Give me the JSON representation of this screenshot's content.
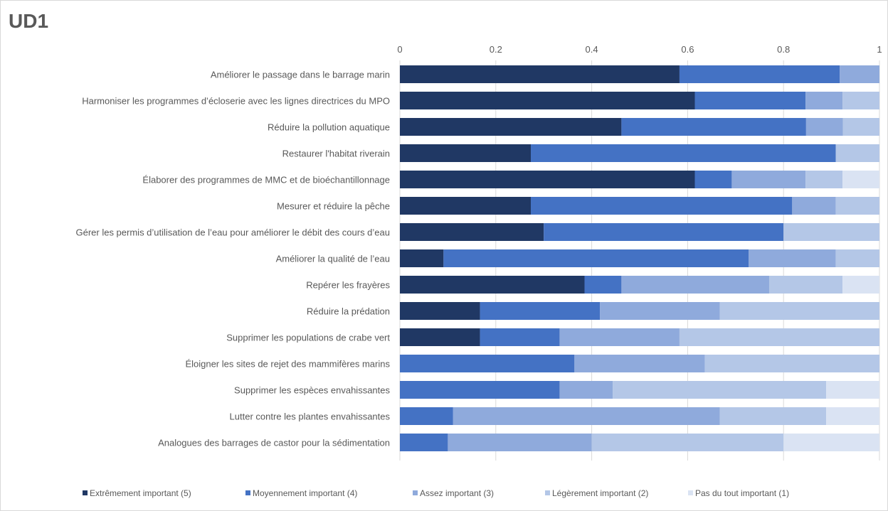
{
  "chart_data": {
    "type": "bar",
    "orientation": "horizontal",
    "stacked": true,
    "title": "UD1",
    "xlim": [
      0,
      1
    ],
    "xticks": [
      "0",
      "0.2",
      "0.4",
      "0.6",
      "0.8",
      "1"
    ],
    "grid": true,
    "legend_position": "bottom",
    "categories": [
      "Améliorer le passage dans le barrage marin",
      "Harmoniser les programmes d’écloserie avec les lignes directrices du MPO",
      "Réduire la pollution aquatique",
      "Restaurer l'habitat riverain",
      "Élaborer des programmes de MMC et de bioéchantillonnage",
      "Mesurer et réduire la pêche",
      "Gérer les permis d’utilisation de l’eau pour améliorer le débit des cours d’eau",
      "Améliorer la qualité de l’eau",
      "Repérer les frayères",
      "Réduire la prédation",
      "Supprimer les populations de crabe vert",
      "Éloigner les sites de rejet des mammifères marins",
      "Supprimer les espèces envahissantes",
      "Lutter contre les plantes envahissantes",
      "Analogues des barrages de castor pour la sédimentation"
    ],
    "series": [
      {
        "name": "Extrêmement important (5)",
        "color": "#203864",
        "values": [
          0.583,
          0.615,
          0.462,
          0.273,
          0.615,
          0.273,
          0.3,
          0.091,
          0.385,
          0.167,
          0.167,
          0,
          0,
          0,
          0
        ]
      },
      {
        "name": "Moyennement important (4)",
        "color": "#4472c4",
        "values": [
          0.334,
          0.231,
          0.385,
          0.636,
          0.077,
          0.545,
          0.5,
          0.636,
          0.077,
          0.25,
          0.166,
          0.364,
          0.333,
          0.111,
          0.1
        ]
      },
      {
        "name": "Assez important (3)",
        "color": "#8faadc",
        "values": [
          0.083,
          0.077,
          0.077,
          0,
          0.154,
          0.091,
          0,
          0.182,
          0.308,
          0.25,
          0.25,
          0.272,
          0.111,
          0.556,
          0.3
        ]
      },
      {
        "name": "Légèrement important (2)",
        "color": "#b4c7e7",
        "values": [
          0,
          0.077,
          0.076,
          0.091,
          0.077,
          0.091,
          0.2,
          0.091,
          0.153,
          0.333,
          0.417,
          0.364,
          0.445,
          0.222,
          0.4
        ]
      },
      {
        "name": "Pas du tout important (1)",
        "color": "#dae3f3",
        "values": [
          0,
          0,
          0,
          0,
          0.077,
          0,
          0,
          0,
          0.077,
          0,
          0,
          0,
          0.111,
          0.111,
          0.2
        ]
      }
    ]
  }
}
